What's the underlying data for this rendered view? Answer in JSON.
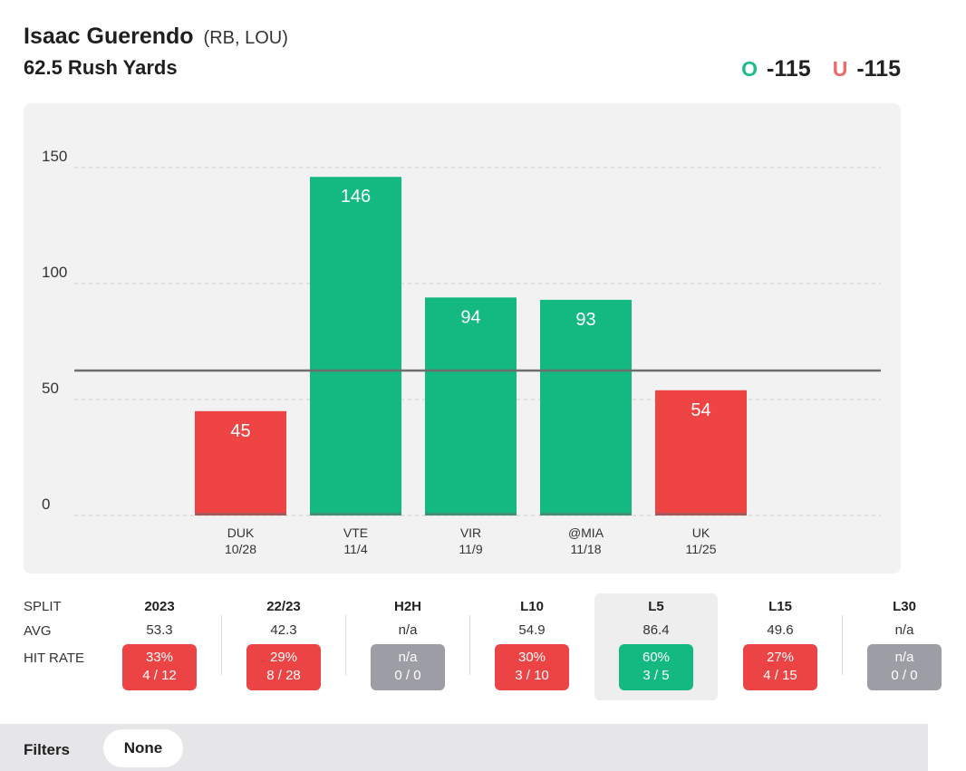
{
  "header": {
    "player_name": "Isaac Guerendo",
    "player_meta": "(RB, LOU)",
    "prop": "62.5 Rush Yards",
    "over_letter": "O",
    "over_odds": "-115",
    "under_letter": "U",
    "under_odds": "-115"
  },
  "chart_data": {
    "type": "bar",
    "categories": [
      "DUK\n10/28",
      "VTE\n11/4",
      "VIR\n11/9",
      "@MIA\n11/18",
      "UK\n11/25"
    ],
    "opponents": [
      "DUK",
      "VTE",
      "VIR",
      "@MIA",
      "UK"
    ],
    "dates": [
      "10/28",
      "11/4",
      "11/9",
      "11/18",
      "11/25"
    ],
    "values": [
      45,
      146,
      94,
      93,
      54
    ],
    "bar_colors": [
      "#ef4444",
      "#14b981",
      "#14b981",
      "#14b981",
      "#ef4444"
    ],
    "yticks": [
      0,
      50,
      100,
      150
    ],
    "ylim": [
      0,
      165
    ],
    "line_value": 62.5,
    "grid": true,
    "title": "",
    "xlabel": "",
    "ylabel": ""
  },
  "splits": {
    "row_labels": {
      "split": "SPLIT",
      "avg": "AVG",
      "hit_rate": "HIT RATE"
    },
    "columns": [
      {
        "label": "2023",
        "avg": "53.3",
        "rate": "33%",
        "record": "4 / 12",
        "status": "red"
      },
      {
        "label": "22/23",
        "avg": "42.3",
        "rate": "29%",
        "record": "8 / 28",
        "status": "red"
      },
      {
        "label": "H2H",
        "avg": "n/a",
        "rate": "n/a",
        "record": "0 / 0",
        "status": "gray"
      },
      {
        "label": "L10",
        "avg": "54.9",
        "rate": "30%",
        "record": "3 / 10",
        "status": "red"
      },
      {
        "label": "L5",
        "avg": "86.4",
        "rate": "60%",
        "record": "3 / 5",
        "status": "green",
        "active": true
      },
      {
        "label": "L15",
        "avg": "49.6",
        "rate": "27%",
        "record": "4 / 15",
        "status": "red"
      },
      {
        "label": "L30",
        "avg": "n/a",
        "rate": "n/a",
        "record": "0 / 0",
        "status": "gray"
      }
    ]
  },
  "filters": {
    "label": "Filters",
    "value": "None"
  },
  "colors": {
    "over": "#1dbf84",
    "under": "#ec6a6a",
    "hit": "#14b981",
    "miss": "#ef4444",
    "neutral": "#9d9da5"
  }
}
